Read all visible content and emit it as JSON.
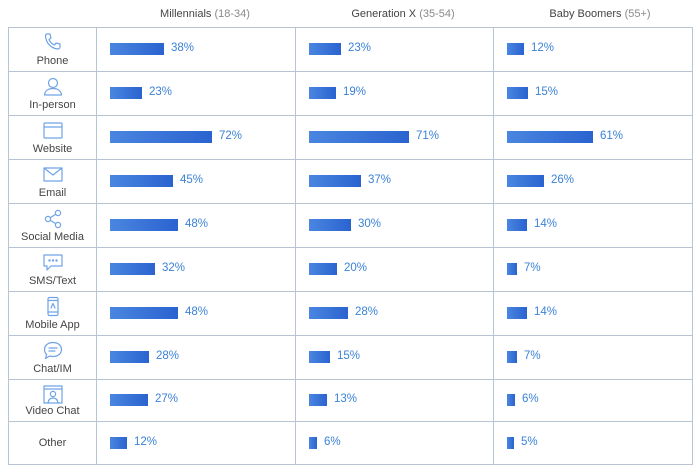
{
  "chart_data": {
    "type": "bar",
    "groups": [
      {
        "name": "Millennials",
        "range": "(18-34)"
      },
      {
        "name": "Generation X",
        "range": "(35-54)"
      },
      {
        "name": "Baby Boomers",
        "range": "(55+)"
      }
    ],
    "rows": [
      {
        "label": "Phone",
        "icon": "phone-icon",
        "values": [
          38,
          23,
          12
        ]
      },
      {
        "label": "In-person",
        "icon": "person-icon",
        "values": [
          23,
          19,
          15
        ]
      },
      {
        "label": "Website",
        "icon": "browser-window-icon",
        "values": [
          72,
          71,
          61
        ]
      },
      {
        "label": "Email",
        "icon": "envelope-icon",
        "values": [
          45,
          37,
          26
        ]
      },
      {
        "label": "Social Media",
        "icon": "share-nodes-icon",
        "values": [
          48,
          30,
          14
        ]
      },
      {
        "label": "SMS/Text",
        "icon": "message-bubble-icon",
        "values": [
          32,
          20,
          7
        ]
      },
      {
        "label": "Mobile App",
        "icon": "smartphone-icon",
        "values": [
          48,
          28,
          14
        ]
      },
      {
        "label": "Chat/IM",
        "icon": "chat-bubble-icon",
        "values": [
          28,
          15,
          7
        ]
      },
      {
        "label": "Video Chat",
        "icon": "video-chat-icon",
        "values": [
          27,
          13,
          6
        ]
      },
      {
        "label": "Other",
        "icon": "",
        "values": [
          12,
          6,
          5
        ]
      }
    ],
    "value_suffix": "%",
    "colors": {
      "bar": "#3a74d8",
      "value_text": "#3b82d6",
      "grid": "#b8c4d2",
      "icon": "#6fa3e6"
    }
  }
}
